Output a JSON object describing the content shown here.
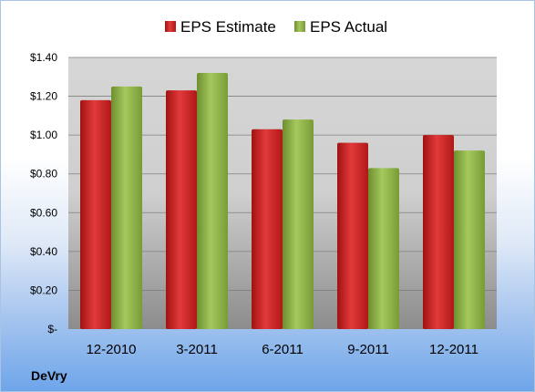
{
  "chart_data": {
    "type": "bar",
    "categories": [
      "12-2010",
      "3-2011",
      "6-2011",
      "9-2011",
      "12-2011"
    ],
    "series": [
      {
        "name": "EPS Estimate",
        "values": [
          1.18,
          1.23,
          1.03,
          0.96,
          1.0
        ],
        "color": "#cc1f1f"
      },
      {
        "name": "EPS Actual",
        "values": [
          1.25,
          1.32,
          1.08,
          0.83,
          0.92
        ],
        "color": "#8fb34a"
      }
    ],
    "y_ticks": [
      {
        "value": 0,
        "label": "$-"
      },
      {
        "value": 0.2,
        "label": "$0.20"
      },
      {
        "value": 0.4,
        "label": "$0.40"
      },
      {
        "value": 0.6,
        "label": "$0.60"
      },
      {
        "value": 0.8,
        "label": "$0.80"
      },
      {
        "value": 1.0,
        "label": "$1.00"
      },
      {
        "value": 1.2,
        "label": "$1.20"
      },
      {
        "value": 1.4,
        "label": "$1.40"
      }
    ],
    "ylim": [
      0,
      1.4
    ],
    "grid": true,
    "legend_position": "top"
  },
  "footer": {
    "company": "DeVry"
  }
}
